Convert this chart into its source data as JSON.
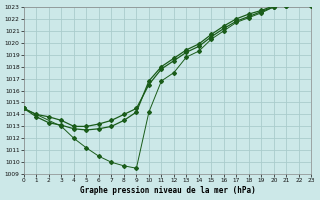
{
  "xlabel_label": "Graphe pression niveau de la mer (hPa)",
  "background_color": "#cce8e8",
  "grid_color": "#aacccc",
  "line_color": "#1a5c1a",
  "ylim": [
    1009,
    1023
  ],
  "xlim": [
    0,
    23
  ],
  "ytick_min": 1009,
  "ytick_max": 1023,
  "xticks": [
    0,
    1,
    2,
    3,
    4,
    5,
    6,
    7,
    8,
    9,
    10,
    11,
    12,
    13,
    14,
    15,
    16,
    17,
    18,
    19,
    20,
    21,
    22,
    23
  ],
  "series": [
    {
      "x": [
        0,
        1,
        2,
        3,
        4,
        5,
        6,
        7,
        8,
        9,
        10,
        11,
        12,
        13,
        14,
        15,
        16,
        17,
        18,
        19,
        20,
        21,
        22,
        23
      ],
      "y": [
        1014.5,
        1014.0,
        1013.8,
        1013.5,
        1013.0,
        1013.0,
        1013.2,
        1013.5,
        1014.0,
        1014.5,
        1016.5,
        1017.8,
        1018.5,
        1019.2,
        1019.7,
        1020.5,
        1021.2,
        1021.8,
        1022.2,
        1022.6,
        1023.0,
        1023.1,
        1023.2,
        1023.2
      ],
      "marker": "D",
      "markersize": 2.0,
      "linestyle": "-",
      "linewidth": 0.9
    },
    {
      "x": [
        0,
        1,
        2,
        3,
        4,
        5,
        6,
        7,
        8,
        9,
        10,
        11,
        12,
        13,
        14,
        15,
        16,
        17,
        18,
        19,
        20,
        21,
        22,
        23
      ],
      "y": [
        1014.5,
        1013.8,
        1013.3,
        1013.1,
        1012.8,
        1012.7,
        1012.8,
        1013.0,
        1013.5,
        1014.2,
        1016.8,
        1018.0,
        1018.7,
        1019.4,
        1019.9,
        1020.7,
        1021.4,
        1022.0,
        1022.4,
        1022.7,
        1023.1,
        1023.2,
        1023.3,
        1023.2
      ],
      "marker": "D",
      "markersize": 2.0,
      "linestyle": "-",
      "linewidth": 0.9
    },
    {
      "x": [
        0,
        3,
        4,
        5,
        6,
        7,
        8,
        9,
        10,
        11,
        12,
        13,
        14,
        15,
        16,
        17,
        18,
        19,
        20,
        21,
        22,
        23
      ],
      "y": [
        1014.5,
        1013.0,
        1012.0,
        1011.2,
        1010.5,
        1010.0,
        1009.7,
        1009.5,
        1014.2,
        1016.8,
        1017.5,
        1018.8,
        1019.3,
        1020.3,
        1021.0,
        1021.7,
        1022.1,
        1022.5,
        1023.0,
        1023.1,
        1023.2,
        1023.1
      ],
      "marker": "D",
      "markersize": 2.0,
      "linestyle": "-",
      "linewidth": 0.7
    }
  ]
}
